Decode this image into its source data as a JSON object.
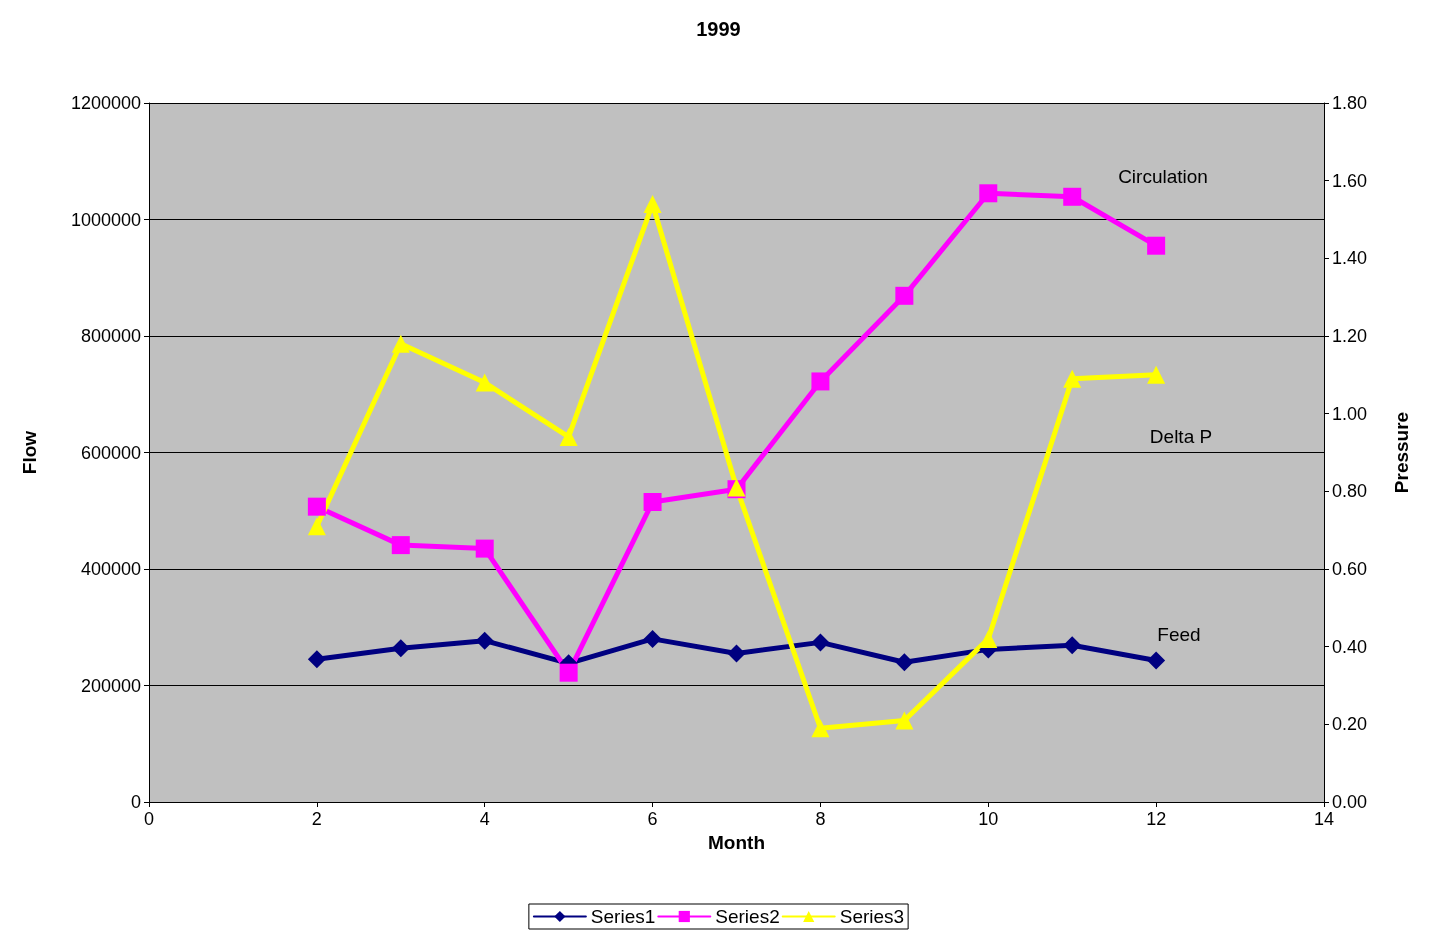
{
  "chart_data": {
    "type": "line",
    "title": "1999",
    "xlabel": "Month",
    "ylabel": "Flow",
    "y2label": "Pressure",
    "x": [
      2,
      3,
      4,
      5,
      6,
      7,
      8,
      9,
      10,
      11,
      12
    ],
    "series": [
      {
        "name": "Series1",
        "color": "#000080",
        "marker": "diamond",
        "values": [
          245000,
          264000,
          277000,
          238000,
          280000,
          255000,
          274000,
          240000,
          262000,
          269000,
          243000
        ]
      },
      {
        "name": "Series2",
        "color": "#ff00ff",
        "marker": "square",
        "values": [
          507000,
          441000,
          435000,
          222000,
          515000,
          537000,
          722000,
          869000,
          1045000,
          1039000,
          955000
        ]
      },
      {
        "name": "Series3",
        "color": "#ffff00",
        "marker": "triangle",
        "axis": "y2",
        "values": [
          0.71,
          1.18,
          1.08,
          0.94,
          1.54,
          0.81,
          0.19,
          0.21,
          0.42,
          1.09,
          1.1
        ]
      }
    ],
    "xlim": [
      0,
      14
    ],
    "xticks": [
      0,
      2,
      4,
      6,
      8,
      10,
      12,
      14
    ],
    "ylim": [
      0,
      1200000
    ],
    "yticks": [
      0,
      200000,
      400000,
      600000,
      800000,
      1000000,
      1200000
    ],
    "y2lim": [
      0,
      1.8
    ],
    "y2ticks": [
      {
        "value": 0,
        "label": "0.00"
      },
      {
        "value": 0.2,
        "label": "0.20"
      },
      {
        "value": 0.4,
        "label": "0.40"
      },
      {
        "value": 0.6,
        "label": "0.60"
      },
      {
        "value": 0.8,
        "label": "0.80"
      },
      {
        "value": 1,
        "label": "1.00"
      },
      {
        "value": 1.2,
        "label": "1.20"
      },
      {
        "value": 1.4,
        "label": "1.40"
      },
      {
        "value": 1.6,
        "label": "1.60"
      },
      {
        "value": 1.8,
        "label": "1.80"
      }
    ],
    "annotations": [
      "Circulation",
      "Delta P",
      "Feed"
    ],
    "grid": "y",
    "legend": "bottom",
    "line_style": "solid"
  }
}
